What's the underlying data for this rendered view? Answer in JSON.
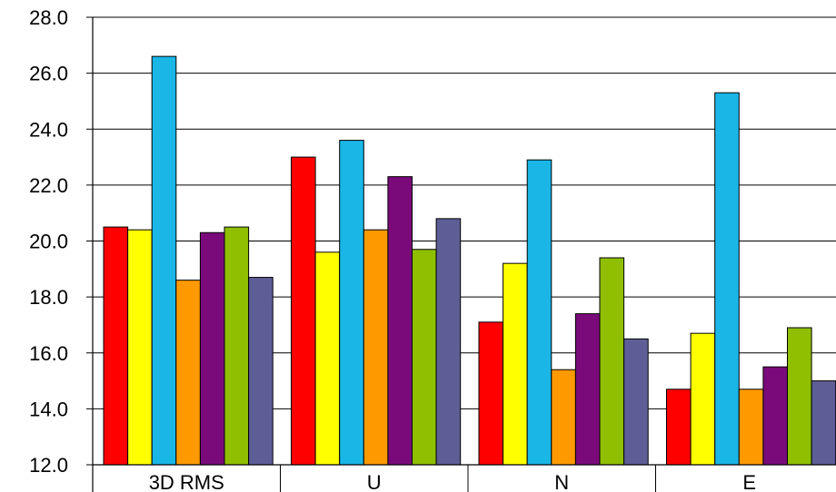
{
  "chart_data": {
    "type": "bar",
    "categories": [
      "3D RMS",
      "U",
      "N",
      "E"
    ],
    "ylim": [
      12.0,
      28.0
    ],
    "yticks": [
      "12.0",
      "14.0",
      "16.0",
      "18.0",
      "20.0",
      "22.0",
      "24.0",
      "26.0",
      "28.0"
    ],
    "grid": true,
    "legend": "none",
    "title": "",
    "xlabel": "",
    "ylabel": "",
    "series": [
      {
        "color": "#ff0000",
        "values": [
          20.5,
          23.0,
          17.1,
          14.7
        ]
      },
      {
        "color": "#ffff00",
        "values": [
          20.4,
          19.6,
          19.2,
          16.7
        ]
      },
      {
        "color": "#19b6e6",
        "values": [
          26.6,
          23.6,
          22.9,
          25.3
        ]
      },
      {
        "color": "#ff9900",
        "values": [
          18.6,
          20.4,
          15.4,
          14.7
        ]
      },
      {
        "color": "#7a0a7a",
        "values": [
          20.3,
          22.3,
          17.4,
          15.5
        ]
      },
      {
        "color": "#8fbf00",
        "values": [
          20.5,
          19.7,
          19.4,
          16.9
        ]
      },
      {
        "color": "#5e5e96",
        "values": [
          18.7,
          20.8,
          16.5,
          15.0
        ]
      }
    ]
  }
}
